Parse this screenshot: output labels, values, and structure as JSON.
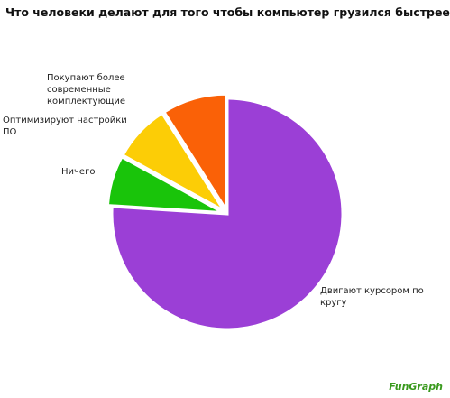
{
  "chart_data": {
    "type": "pie",
    "title": "Что человеки делают для того чтобы компьютер грузился быстрее",
    "categories": [
      "Двигают курсором по кругу",
      "Ничего",
      "Оптимизируют настройки ПО",
      "Покупают более современные комплектующие"
    ],
    "values": [
      76,
      7,
      8,
      9
    ],
    "colors": [
      "#9b3fd6",
      "#19c40a",
      "#fccd06",
      "#fa6107"
    ],
    "watermark": "FunGraph"
  }
}
